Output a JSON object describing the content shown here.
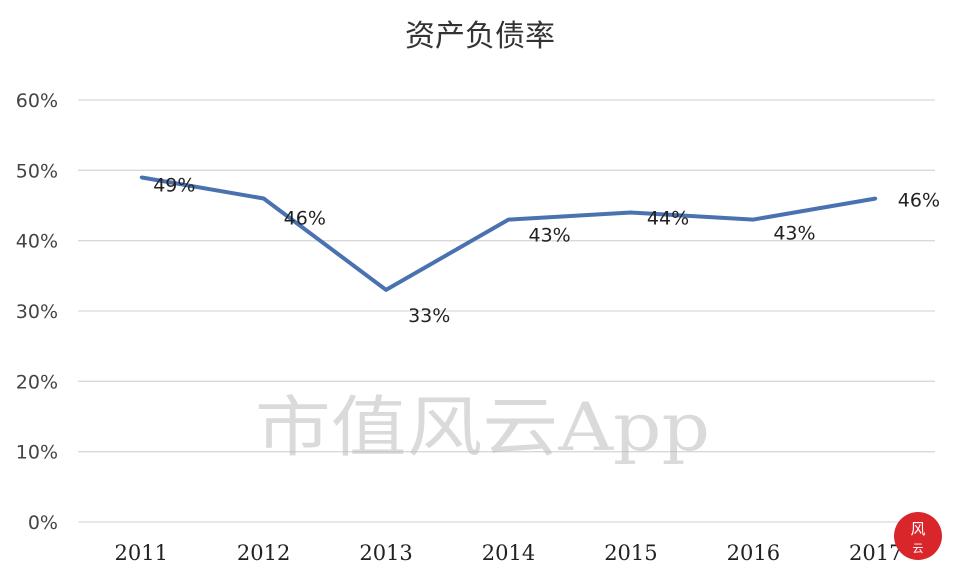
{
  "chart_data": {
    "type": "line",
    "title": "资产负债率",
    "categories": [
      "2011",
      "2012",
      "2013",
      "2014",
      "2015",
      "2016",
      "2017"
    ],
    "series": [
      {
        "values": [
          49,
          46,
          33,
          43,
          44,
          43,
          46
        ],
        "labels": [
          "49%",
          "46%",
          "33%",
          "43%",
          "44%",
          "43%",
          "46%"
        ],
        "color": "#4a72b0"
      }
    ],
    "ylim": [
      0,
      60
    ],
    "yticks": [
      0,
      10,
      20,
      30,
      40,
      50,
      60
    ],
    "ytick_labels": [
      "0%",
      "10%",
      "20%",
      "30%",
      "40%",
      "50%",
      "60%"
    ],
    "grid": true,
    "legend": "none",
    "xlabel": "",
    "ylabel": ""
  },
  "watermark": "市值风云App",
  "seal_color": "#d9262b",
  "seal_text": "风云"
}
